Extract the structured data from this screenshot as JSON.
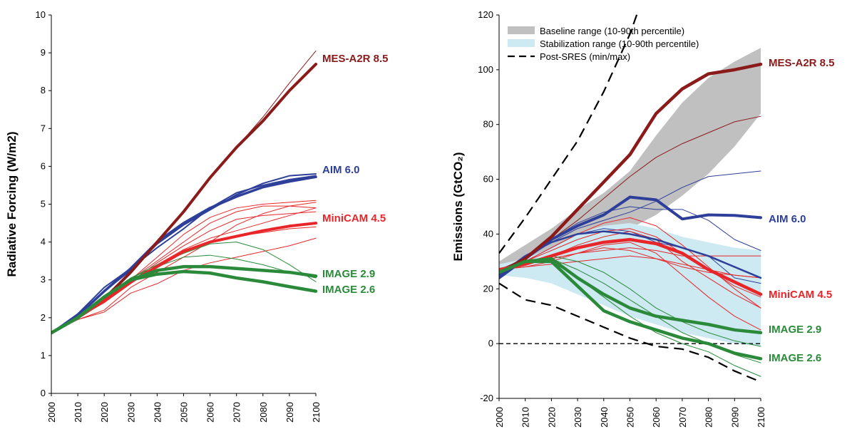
{
  "colors": {
    "mes": "#8b1a1a",
    "aim": "#2e3f9a",
    "minicam": "#e8262a",
    "image": "#2a8a3a",
    "baseline": "#c0c0c0",
    "stabilization": "#cde9f2"
  },
  "chart_data": [
    {
      "type": "line",
      "ylabel": "Radiative Forcing (W/m2)",
      "xlim": [
        2000,
        2100
      ],
      "ylim": [
        0,
        10
      ],
      "yticks": [
        "0",
        "1",
        "2",
        "3",
        "4",
        "5",
        "6",
        "7",
        "8",
        "9",
        "10"
      ],
      "xticks": [
        "2000",
        "2010",
        "2020",
        "2030",
        "2040",
        "2050",
        "2060",
        "2070",
        "2080",
        "2090",
        "2100"
      ],
      "x": [
        2000,
        2010,
        2020,
        2030,
        2040,
        2050,
        2060,
        2070,
        2080,
        2090,
        2100
      ],
      "series": [
        {
          "name": "MES-A2R 8.5",
          "group": "mes",
          "width": 4,
          "label": true,
          "values": [
            1.6,
            2.0,
            2.5,
            3.2,
            4.0,
            4.8,
            5.7,
            6.5,
            7.2,
            8.0,
            8.7
          ]
        },
        {
          "group": "mes",
          "width": 1,
          "values": [
            1.6,
            2.0,
            2.5,
            3.2,
            4.0,
            4.8,
            5.7,
            6.5,
            7.3,
            8.2,
            9.05
          ]
        },
        {
          "name": "AIM 6.0",
          "group": "aim",
          "width": 3.5,
          "label": true,
          "values": [
            1.6,
            2.05,
            2.7,
            3.3,
            4.0,
            4.5,
            4.9,
            5.2,
            5.45,
            5.6,
            5.72
          ]
        },
        {
          "group": "aim",
          "width": 2,
          "values": [
            1.6,
            2.05,
            2.7,
            3.25,
            3.95,
            4.45,
            4.85,
            5.25,
            5.55,
            5.75,
            5.8
          ]
        },
        {
          "group": "aim",
          "width": 2,
          "values": [
            1.6,
            2.1,
            2.8,
            3.3,
            3.85,
            4.35,
            4.9,
            5.3,
            5.5,
            5.65,
            5.75
          ]
        },
        {
          "name": "MiniCAM 4.5",
          "group": "minicam",
          "width": 4,
          "label": true,
          "values": [
            1.6,
            2.0,
            2.45,
            2.95,
            3.35,
            3.75,
            4.0,
            4.15,
            4.3,
            4.42,
            4.5
          ]
        },
        {
          "group": "minicam",
          "width": 1,
          "values": [
            1.6,
            2.0,
            2.4,
            3.0,
            3.6,
            4.2,
            4.65,
            4.9,
            5.0,
            5.05,
            5.1
          ]
        },
        {
          "group": "minicam",
          "width": 1,
          "values": [
            1.6,
            2.0,
            2.4,
            3.0,
            3.5,
            4.0,
            4.5,
            4.8,
            4.95,
            4.95,
            4.9
          ]
        },
        {
          "group": "minicam",
          "width": 1,
          "values": [
            1.6,
            2.0,
            2.4,
            2.95,
            3.45,
            3.9,
            4.3,
            4.6,
            4.7,
            4.75,
            4.8
          ]
        },
        {
          "group": "minicam",
          "width": 1,
          "values": [
            1.6,
            2.0,
            2.4,
            2.9,
            3.35,
            3.75,
            4.0,
            4.15,
            4.25,
            4.35,
            4.4
          ]
        },
        {
          "group": "minicam",
          "width": 1,
          "values": [
            1.6,
            1.95,
            2.2,
            2.8,
            3.2,
            3.6,
            4.0,
            4.45,
            4.75,
            4.95,
            5.05
          ]
        },
        {
          "group": "minicam",
          "width": 1,
          "values": [
            1.6,
            1.95,
            2.15,
            2.65,
            2.9,
            3.25,
            3.45,
            3.6,
            3.75,
            3.9,
            4.1
          ]
        },
        {
          "group": "minicam",
          "width": 1,
          "values": [
            1.6,
            2.0,
            2.4,
            2.9,
            3.4,
            3.8,
            4.1,
            4.3,
            4.5,
            4.7,
            4.9
          ]
        },
        {
          "name": "IMAGE 2.9",
          "group": "image",
          "width": 4.5,
          "label": true,
          "values": [
            1.6,
            2.0,
            2.55,
            3.0,
            3.25,
            3.35,
            3.35,
            3.3,
            3.25,
            3.2,
            3.1
          ]
        },
        {
          "name": "IMAGE 2.6",
          "group": "image",
          "width": 4.5,
          "label": true,
          "values": [
            1.6,
            2.0,
            2.55,
            3.0,
            3.15,
            3.22,
            3.18,
            3.05,
            2.95,
            2.82,
            2.7
          ]
        },
        {
          "group": "image",
          "width": 1,
          "values": [
            1.6,
            2.0,
            2.55,
            3.05,
            3.35,
            3.6,
            3.65,
            3.55,
            3.4,
            3.2,
            3.05
          ]
        },
        {
          "group": "image",
          "width": 1,
          "values": [
            1.6,
            2.0,
            2.55,
            3.05,
            3.4,
            3.7,
            3.95,
            4.0,
            3.8,
            3.4,
            2.95
          ]
        }
      ]
    },
    {
      "type": "line",
      "ylabel": "Emissions (GtCO₂)",
      "xlim": [
        2000,
        2100
      ],
      "ylim": [
        -20,
        120
      ],
      "yticks": [
        "-20",
        "0",
        "20",
        "40",
        "60",
        "80",
        "100",
        "120"
      ],
      "xticks": [
        "2000",
        "2010",
        "2020",
        "2030",
        "2040",
        "2050",
        "2060",
        "2070",
        "2080",
        "2090",
        "2100"
      ],
      "x": [
        2000,
        2010,
        2020,
        2030,
        2040,
        2050,
        2060,
        2070,
        2080,
        2090,
        2100
      ],
      "legend": [
        {
          "kind": "band-gray",
          "label": "Baseline range (10-90th percentile)"
        },
        {
          "kind": "band-blue",
          "label": "Stabilization range (10-90th percentile)"
        },
        {
          "kind": "dash",
          "label": "Post-SRES (min/max)"
        }
      ],
      "baseline_range": {
        "upper": [
          30,
          36,
          42,
          49,
          55,
          63,
          76,
          88,
          97,
          103,
          108
        ],
        "lower": [
          26,
          29,
          32,
          36,
          39,
          42,
          47,
          54,
          62,
          72,
          84
        ]
      },
      "stabilization_range": {
        "upper": [
          29,
          31,
          35,
          40,
          43,
          44,
          42,
          39,
          37,
          35,
          34
        ],
        "lower": [
          25,
          24,
          22,
          18,
          14,
          10,
          7,
          4,
          2,
          0,
          -1
        ]
      },
      "post_sres": {
        "upper": [
          33,
          46,
          60,
          74,
          92,
          113,
          140,
          170,
          200,
          230,
          250
        ],
        "lower": [
          22,
          16,
          14,
          10,
          6,
          2,
          -1,
          -2,
          -5,
          -10,
          -14
        ]
      },
      "zero_line": 0,
      "series": [
        {
          "name": "MES-A2R 8.5",
          "group": "mes",
          "width": 4.5,
          "label": true,
          "values": [
            26,
            31,
            39,
            49,
            59,
            69,
            84,
            93,
            98.5,
            100,
            102
          ]
        },
        {
          "group": "mes",
          "width": 1,
          "values": [
            27,
            31,
            38,
            45,
            53,
            61,
            68,
            73,
            77,
            81,
            83
          ]
        },
        {
          "name": "AIM 6.0",
          "group": "aim",
          "width": 4,
          "label": true,
          "values": [
            24,
            31,
            38,
            43,
            47,
            53.5,
            52.5,
            45.5,
            47,
            46.8,
            46
          ]
        },
        {
          "group": "aim",
          "width": 1,
          "values": [
            24,
            31,
            37,
            42,
            45,
            48,
            52,
            57,
            61,
            62,
            63
          ]
        },
        {
          "group": "aim",
          "width": 1,
          "values": [
            25,
            31,
            38,
            44,
            48,
            50,
            49,
            49,
            45,
            38,
            34
          ]
        },
        {
          "group": "aim",
          "width": 2.5,
          "values": [
            25,
            32,
            37,
            40,
            41,
            40,
            38,
            35,
            32,
            28,
            24
          ]
        },
        {
          "group": "aim",
          "width": 1,
          "values": [
            25,
            30,
            35,
            40,
            42,
            41,
            37,
            35,
            32,
            24,
            22
          ]
        },
        {
          "name": "MiniCAM 4.5",
          "group": "minicam",
          "width": 4.5,
          "label": true,
          "values": [
            27,
            29,
            32,
            35,
            37,
            38,
            36.5,
            33,
            27,
            22.5,
            18
          ]
        },
        {
          "group": "minicam",
          "width": 1,
          "values": [
            27,
            29,
            31,
            33,
            34,
            35,
            34,
            32,
            32,
            32,
            32
          ]
        },
        {
          "group": "minicam",
          "width": 1,
          "values": [
            27,
            30,
            34,
            38,
            41,
            42,
            39,
            33,
            27,
            21,
            17
          ]
        },
        {
          "group": "minicam",
          "width": 1,
          "values": [
            27,
            29,
            32,
            36,
            39,
            41,
            38,
            30,
            24,
            18,
            13
          ]
        },
        {
          "group": "minicam",
          "width": 1,
          "values": [
            27,
            28,
            30,
            33,
            36,
            37,
            33,
            25,
            17,
            10,
            5
          ]
        },
        {
          "group": "minicam",
          "width": 1,
          "values": [
            27,
            29,
            31,
            33,
            35,
            34,
            31,
            28,
            26,
            25,
            24
          ]
        },
        {
          "group": "minicam",
          "width": 1,
          "values": [
            27,
            28,
            29,
            30,
            31,
            32,
            31,
            29,
            27,
            25,
            24
          ]
        },
        {
          "group": "minicam",
          "width": 1,
          "values": [
            27,
            30,
            35,
            40,
            44,
            46,
            43,
            36,
            28,
            20,
            13
          ]
        },
        {
          "name": "IMAGE 2.9",
          "group": "image",
          "width": 4.5,
          "label": true,
          "values": [
            26,
            30,
            31,
            24,
            18,
            13,
            10,
            8.5,
            7,
            5,
            4
          ]
        },
        {
          "name": "IMAGE 2.6",
          "group": "image",
          "width": 4.5,
          "label": true,
          "values": [
            26,
            30,
            30,
            21,
            12,
            8,
            5,
            2,
            0,
            -3.5,
            -5.5
          ]
        },
        {
          "group": "image",
          "width": 1,
          "values": [
            26,
            30,
            32,
            30,
            26,
            20,
            13,
            8,
            4,
            1,
            -1
          ]
        },
        {
          "group": "image",
          "width": 1,
          "values": [
            26,
            30,
            31,
            27,
            22,
            16,
            10,
            4,
            0,
            -4,
            -7
          ]
        },
        {
          "group": "image",
          "width": 1,
          "values": [
            26,
            30,
            30,
            24,
            17,
            10,
            4,
            0,
            -3,
            -8,
            -12
          ]
        }
      ]
    }
  ]
}
